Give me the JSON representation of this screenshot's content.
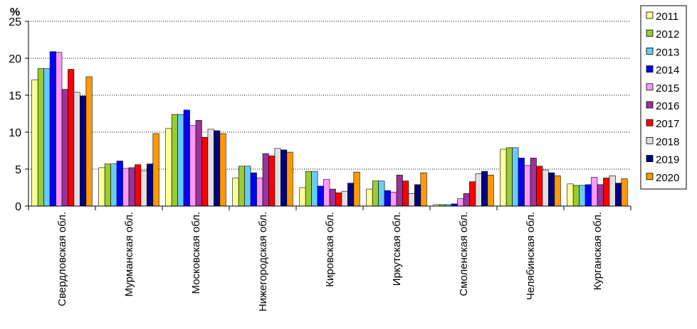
{
  "chart_data": {
    "type": "bar",
    "ylabel": "%",
    "ylim": [
      0,
      25
    ],
    "yticks": [
      0,
      5,
      10,
      15,
      20,
      25
    ],
    "grid": "horizontal-dotted",
    "legend_position": "right",
    "categories": [
      "Свердловская обл.",
      "Мурманская обл.",
      "Московская обл.",
      "Нижегородская обл.",
      "Кировская обл.",
      "Иркутская обл.",
      "Смоленская обл.",
      "Челябинская обл.",
      "Курганская обл."
    ],
    "series": [
      {
        "name": "2011",
        "color": "#ffff99",
        "values": [
          17.1,
          5.2,
          10.5,
          3.8,
          2.5,
          2.3,
          0.2,
          7.7,
          3.0
        ]
      },
      {
        "name": "2012",
        "color": "#99cc33",
        "values": [
          18.6,
          5.7,
          12.4,
          5.4,
          4.7,
          3.4,
          0.2,
          7.9,
          2.8
        ]
      },
      {
        "name": "2013",
        "color": "#66ccff",
        "values": [
          18.6,
          5.7,
          12.4,
          5.4,
          4.7,
          3.4,
          0.2,
          7.9,
          2.8
        ]
      },
      {
        "name": "2014",
        "color": "#0000ff",
        "values": [
          20.9,
          6.1,
          13.0,
          4.5,
          2.7,
          2.1,
          0.3,
          6.5,
          2.9
        ]
      },
      {
        "name": "2015",
        "color": "#ff99ff",
        "values": [
          20.8,
          5.1,
          10.9,
          3.8,
          3.6,
          1.9,
          1.0,
          5.5,
          3.9
        ]
      },
      {
        "name": "2016",
        "color": "#993399",
        "values": [
          15.8,
          5.2,
          11.6,
          7.1,
          2.3,
          4.2,
          1.7,
          6.5,
          2.9
        ]
      },
      {
        "name": "2017",
        "color": "#ff0000",
        "values": [
          18.5,
          5.6,
          9.3,
          6.8,
          1.8,
          3.4,
          3.3,
          5.4,
          3.8
        ]
      },
      {
        "name": "2018",
        "color": "#e0e0e0",
        "values": [
          15.4,
          4.8,
          10.4,
          7.8,
          2.0,
          1.7,
          4.4,
          4.9,
          4.1
        ]
      },
      {
        "name": "2019",
        "color": "#000080",
        "values": [
          14.9,
          5.7,
          10.2,
          7.6,
          3.1,
          2.9,
          4.7,
          4.5,
          3.1
        ]
      },
      {
        "name": "2020",
        "color": "#ff9900",
        "values": [
          17.5,
          9.8,
          9.8,
          7.3,
          4.6,
          4.5,
          4.2,
          4.1,
          3.7
        ]
      }
    ]
  }
}
